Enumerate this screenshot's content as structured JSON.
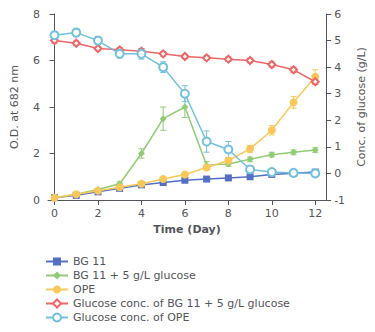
{
  "chart_data": {
    "type": "line",
    "x": [
      0,
      1,
      2,
      3,
      4,
      5,
      6,
      7,
      8,
      9,
      10,
      11,
      12
    ],
    "xlabel": "Time (Day)",
    "ylabel": "O.D. at 682 nm",
    "y2label": "Conc. of glucose (g/L)",
    "xlim": [
      -0.3,
      12.5
    ],
    "xticks": [
      0,
      2,
      4,
      6,
      8,
      10,
      12
    ],
    "ylim": [
      0,
      8
    ],
    "yticks": [
      0,
      2,
      4,
      6,
      8
    ],
    "y2lim": [
      -1,
      6
    ],
    "y2ticks": [
      -1,
      0,
      1,
      2,
      3,
      4,
      5,
      6
    ],
    "grid": false,
    "legend": "bottom left",
    "series": [
      {
        "name": "BG 11",
        "marker": "square",
        "values": [
          0.1,
          0.2,
          0.35,
          0.5,
          0.65,
          0.75,
          0.85,
          0.9,
          0.95,
          1.0,
          1.1,
          1.15,
          1.2
        ],
        "errors": [
          0.02,
          0.03,
          0.03,
          0.03,
          0.04,
          0.04,
          0.04,
          0.03,
          0.03,
          0.03,
          0.03,
          0.03,
          0.03
        ]
      },
      {
        "name": "BG 11 + 5 g/L glucose",
        "marker": "diamond",
        "values": [
          0.1,
          0.25,
          0.45,
          0.7,
          2.0,
          3.5,
          4.0,
          1.5,
          1.55,
          1.75,
          1.95,
          2.05,
          2.15
        ],
        "errors": [
          0.03,
          0.04,
          0.05,
          0.08,
          0.2,
          0.5,
          0.45,
          0.15,
          0.1,
          0.1,
          0.1,
          0.1,
          0.1
        ]
      },
      {
        "name": "OPE",
        "marker": "circle",
        "values": [
          0.1,
          0.25,
          0.4,
          0.55,
          0.7,
          0.9,
          1.1,
          1.4,
          1.7,
          2.2,
          3.0,
          4.2,
          5.3
        ],
        "errors": [
          0.02,
          0.03,
          0.03,
          0.04,
          0.05,
          0.05,
          0.06,
          0.08,
          0.1,
          0.15,
          0.2,
          0.25,
          0.3
        ]
      },
      {
        "name": "Glucose conc. of BG 11 + 5 g/L glucose",
        "marker": "diamond",
        "axis": "y2",
        "values": [
          5.0,
          4.9,
          4.7,
          4.65,
          4.6,
          4.5,
          4.4,
          4.35,
          4.3,
          4.25,
          4.1,
          3.9,
          3.45
        ],
        "errors": [
          0.1,
          0.08,
          0.08,
          0.08,
          0.1,
          0.08,
          0.08,
          0.08,
          0.08,
          0.08,
          0.1,
          0.1,
          0.1
        ]
      },
      {
        "name": "Glucose conc. of OPE",
        "marker": "circle",
        "axis": "y2",
        "values": [
          5.2,
          5.3,
          5.0,
          4.5,
          4.5,
          4.0,
          3.0,
          1.2,
          0.9,
          0.15,
          0.05,
          0.02,
          0.0
        ],
        "errors": [
          0.15,
          0.15,
          0.15,
          0.15,
          0.2,
          0.2,
          0.3,
          0.4,
          0.3,
          0.1,
          0.05,
          0.02,
          0.01
        ]
      }
    ]
  }
}
